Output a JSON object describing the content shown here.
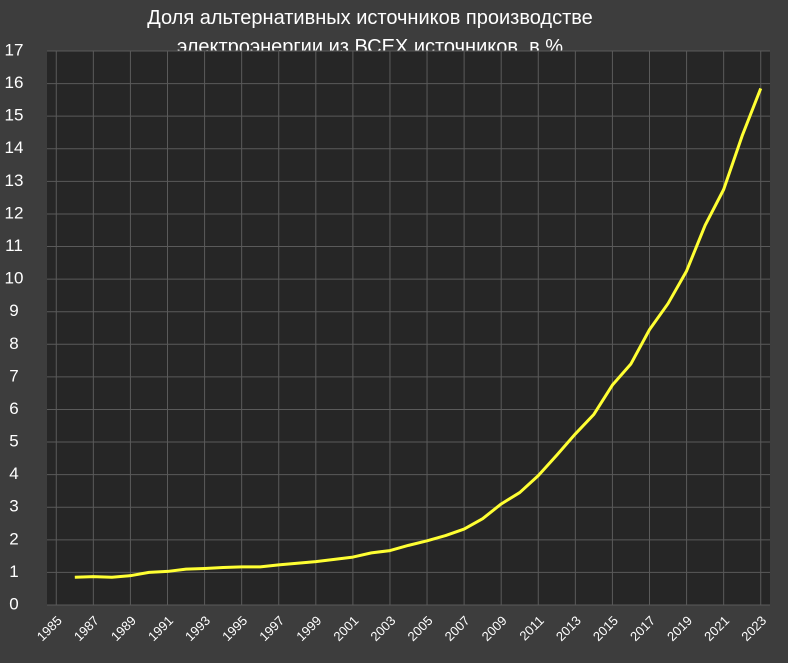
{
  "chart_data": {
    "type": "line",
    "title": "Доля альтернативных источников производстве электроэнергии из ВСЕХ источников, в %",
    "x": [
      1986,
      1987,
      1988,
      1989,
      1990,
      1991,
      1992,
      1993,
      1994,
      1995,
      1996,
      1997,
      1998,
      1999,
      2000,
      2001,
      2002,
      2003,
      2004,
      2005,
      2006,
      2007,
      2008,
      2009,
      2010,
      2011,
      2012,
      2013,
      2014,
      2015,
      2016,
      2017,
      2018,
      2019,
      2020,
      2021,
      2022,
      2023
    ],
    "series": [
      {
        "name": "Доля",
        "color": "#ffff33",
        "values": [
          0.85,
          0.87,
          0.85,
          0.9,
          1.0,
          1.03,
          1.1,
          1.12,
          1.15,
          1.17,
          1.17,
          1.23,
          1.28,
          1.33,
          1.4,
          1.47,
          1.6,
          1.67,
          1.83,
          1.97,
          2.13,
          2.33,
          2.65,
          3.1,
          3.45,
          3.97,
          4.6,
          5.25,
          5.85,
          6.75,
          7.4,
          8.45,
          9.25,
          10.25,
          11.65,
          12.75,
          14.4,
          15.85
        ]
      }
    ],
    "xlim": [
      1984.5,
      2023.5
    ],
    "xticks": [
      1985,
      1987,
      1989,
      1991,
      1993,
      1995,
      1997,
      1999,
      2001,
      2003,
      2005,
      2007,
      2009,
      2011,
      2013,
      2015,
      2017,
      2019,
      2021,
      2023
    ],
    "ylim": [
      0,
      17
    ],
    "yticks": [
      0,
      1,
      2,
      3,
      4,
      5,
      6,
      7,
      8,
      9,
      10,
      11,
      12,
      13,
      14,
      15,
      16,
      17
    ],
    "grid": true
  }
}
